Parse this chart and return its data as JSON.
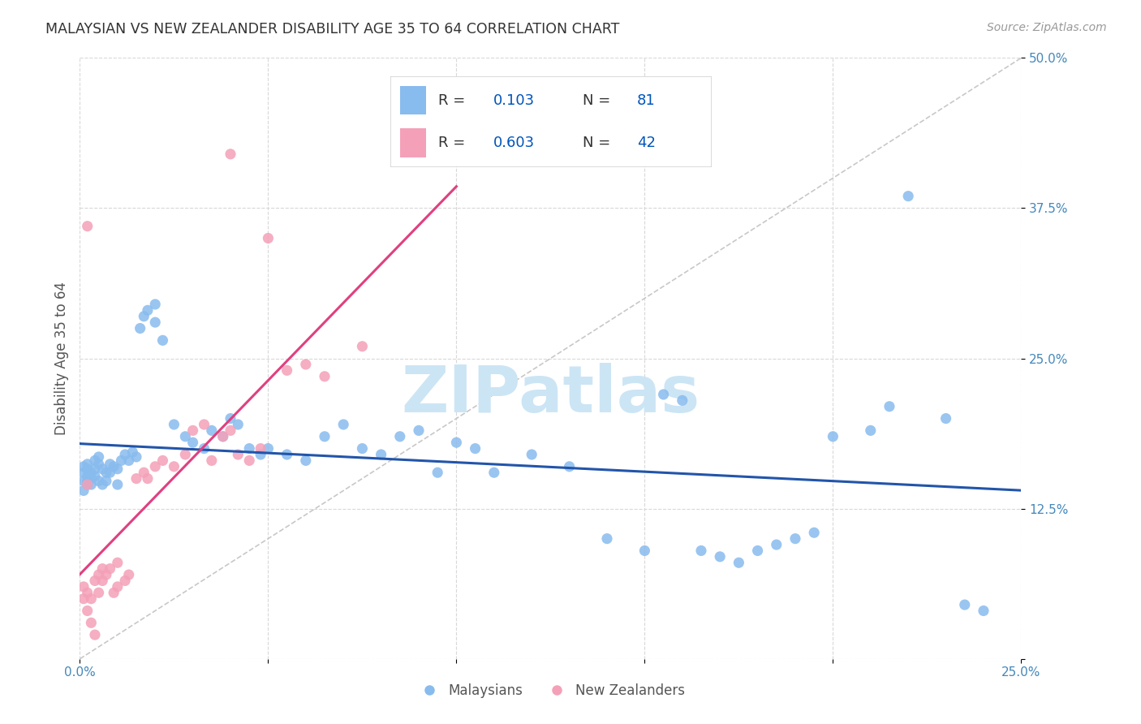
{
  "title": "MALAYSIAN VS NEW ZEALANDER DISABILITY AGE 35 TO 64 CORRELATION CHART",
  "source": "Source: ZipAtlas.com",
  "ylabel_label": "Disability Age 35 to 64",
  "x_min": 0.0,
  "x_max": 0.25,
  "y_min": 0.0,
  "y_max": 0.5,
  "background_color": "#ffffff",
  "grid_color": "#d8d8d8",
  "title_color": "#333333",
  "source_color": "#999999",
  "malaysian_color": "#88BBEE",
  "nz_color": "#F4A0B8",
  "malaysian_line_color": "#2255AA",
  "nz_line_color": "#E04080",
  "diagonal_color": "#c8c8c8",
  "R_malaysian": 0.103,
  "N_malaysian": 81,
  "R_nz": 0.603,
  "N_nz": 42,
  "watermark_color": "#cce5f5",
  "legend_color": "#0055BB",
  "tick_color": "#4488BB",
  "mal_x": [
    0.001,
    0.001,
    0.001,
    0.001,
    0.002,
    0.002,
    0.002,
    0.002,
    0.002,
    0.003,
    0.003,
    0.003,
    0.004,
    0.004,
    0.004,
    0.005,
    0.005,
    0.005,
    0.006,
    0.006,
    0.007,
    0.007,
    0.008,
    0.008,
    0.009,
    0.01,
    0.01,
    0.011,
    0.012,
    0.013,
    0.014,
    0.015,
    0.016,
    0.017,
    0.018,
    0.02,
    0.02,
    0.022,
    0.025,
    0.028,
    0.03,
    0.033,
    0.035,
    0.038,
    0.04,
    0.042,
    0.045,
    0.048,
    0.05,
    0.055,
    0.06,
    0.065,
    0.07,
    0.075,
    0.08,
    0.085,
    0.09,
    0.095,
    0.1,
    0.105,
    0.11,
    0.12,
    0.13,
    0.14,
    0.15,
    0.155,
    0.16,
    0.165,
    0.17,
    0.175,
    0.18,
    0.185,
    0.19,
    0.195,
    0.2,
    0.21,
    0.215,
    0.22,
    0.23,
    0.235,
    0.24
  ],
  "mal_y": [
    0.155,
    0.16,
    0.148,
    0.14,
    0.152,
    0.145,
    0.162,
    0.158,
    0.148,
    0.155,
    0.15,
    0.145,
    0.165,
    0.158,
    0.152,
    0.168,
    0.162,
    0.148,
    0.158,
    0.145,
    0.155,
    0.148,
    0.162,
    0.155,
    0.16,
    0.158,
    0.145,
    0.165,
    0.17,
    0.165,
    0.172,
    0.168,
    0.275,
    0.285,
    0.29,
    0.28,
    0.295,
    0.265,
    0.195,
    0.185,
    0.18,
    0.175,
    0.19,
    0.185,
    0.2,
    0.195,
    0.175,
    0.17,
    0.175,
    0.17,
    0.165,
    0.185,
    0.195,
    0.175,
    0.17,
    0.185,
    0.19,
    0.155,
    0.18,
    0.175,
    0.155,
    0.17,
    0.16,
    0.1,
    0.09,
    0.22,
    0.215,
    0.09,
    0.085,
    0.08,
    0.09,
    0.095,
    0.1,
    0.105,
    0.185,
    0.19,
    0.21,
    0.385,
    0.2,
    0.045,
    0.04
  ],
  "nz_x": [
    0.001,
    0.001,
    0.002,
    0.002,
    0.002,
    0.003,
    0.003,
    0.004,
    0.004,
    0.005,
    0.005,
    0.006,
    0.006,
    0.007,
    0.008,
    0.009,
    0.01,
    0.01,
    0.012,
    0.013,
    0.015,
    0.017,
    0.018,
    0.02,
    0.022,
    0.025,
    0.028,
    0.03,
    0.033,
    0.035,
    0.038,
    0.04,
    0.04,
    0.042,
    0.045,
    0.048,
    0.05,
    0.055,
    0.06,
    0.065,
    0.075,
    0.002
  ],
  "nz_y": [
    0.06,
    0.05,
    0.04,
    0.055,
    0.36,
    0.05,
    0.03,
    0.02,
    0.065,
    0.055,
    0.07,
    0.065,
    0.075,
    0.07,
    0.075,
    0.055,
    0.06,
    0.08,
    0.065,
    0.07,
    0.15,
    0.155,
    0.15,
    0.16,
    0.165,
    0.16,
    0.17,
    0.19,
    0.195,
    0.165,
    0.185,
    0.19,
    0.42,
    0.17,
    0.165,
    0.175,
    0.35,
    0.24,
    0.245,
    0.235,
    0.26,
    0.145
  ]
}
